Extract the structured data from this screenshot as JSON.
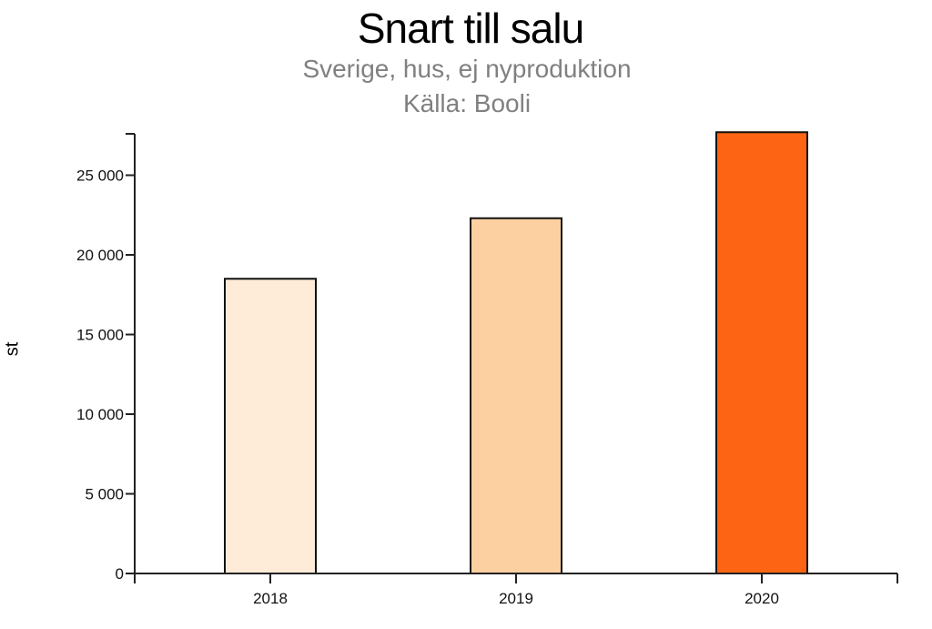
{
  "chart_data": {
    "type": "bar",
    "title": "Snart till salu",
    "subtitle": "Sverige, hus, ej nyproduktion",
    "source": "Källa: Booli",
    "xlabel": "",
    "ylabel": "st",
    "categories": [
      "2018",
      "2019",
      "2020"
    ],
    "values": [
      18500,
      22300,
      27700
    ],
    "colors": [
      "#feebd8",
      "#fdd0a2",
      "#fd6414"
    ],
    "ylim": [
      0,
      27700
    ],
    "yticks": [
      0,
      5000,
      10000,
      15000,
      20000,
      25000
    ],
    "ytick_labels": [
      "0",
      "5 000",
      "10 000",
      "15 000",
      "20 000",
      "25 000"
    ],
    "grid": false,
    "legend": null
  }
}
